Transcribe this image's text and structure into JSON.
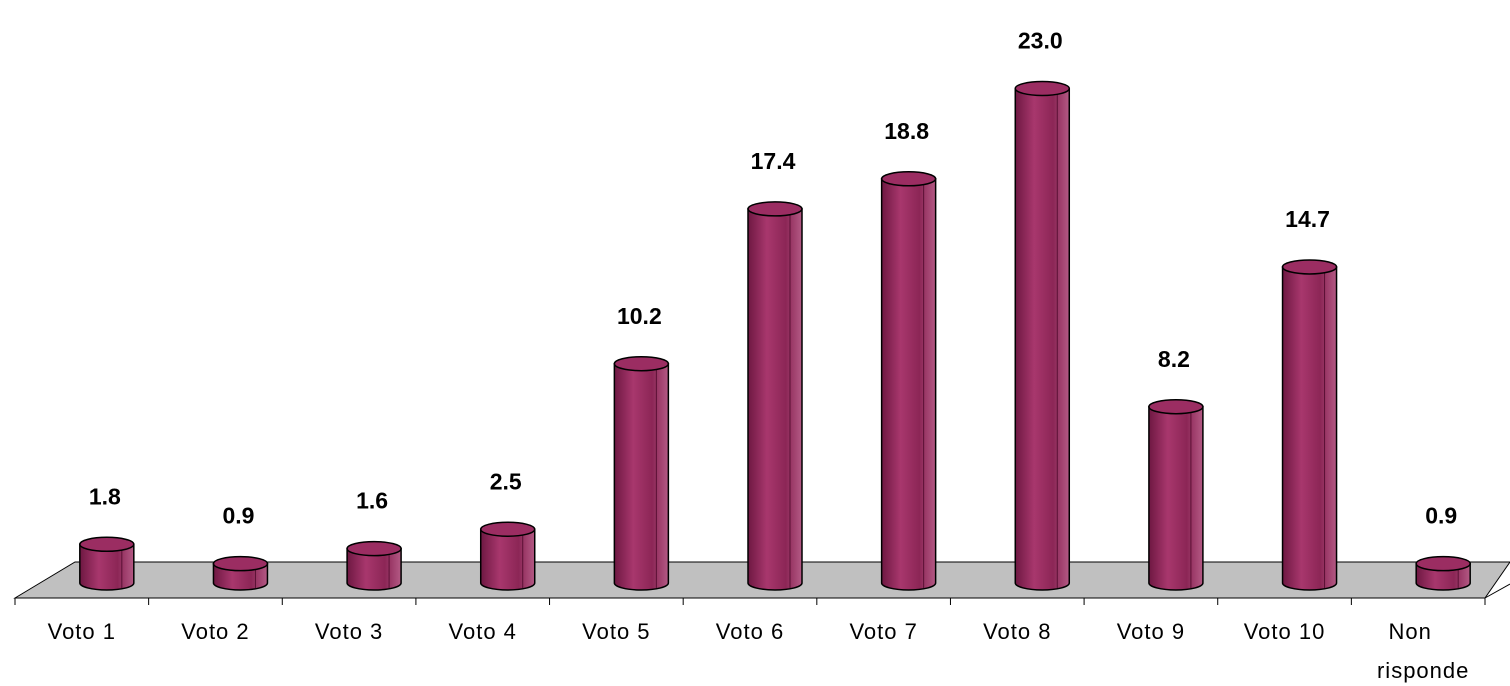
{
  "chart_data": {
    "type": "bar3d",
    "categories": [
      "Voto 1",
      "Voto 2",
      "Voto 3",
      "Voto 4",
      "Voto 5",
      "Voto 6",
      "Voto 7",
      "Voto 8",
      "Voto 9",
      "Voto 10",
      "Non risponde"
    ],
    "values": [
      1.8,
      0.9,
      1.6,
      2.5,
      10.2,
      17.4,
      18.8,
      23,
      8.2,
      14.7,
      0.9
    ],
    "value_labels": [
      "1.8",
      "0.9",
      "1.6",
      "2.5",
      "10.2",
      "17.4",
      "18.8",
      "23.0",
      "8.2",
      "14.7",
      "0.9"
    ],
    "color": "#9b2d62"
  }
}
